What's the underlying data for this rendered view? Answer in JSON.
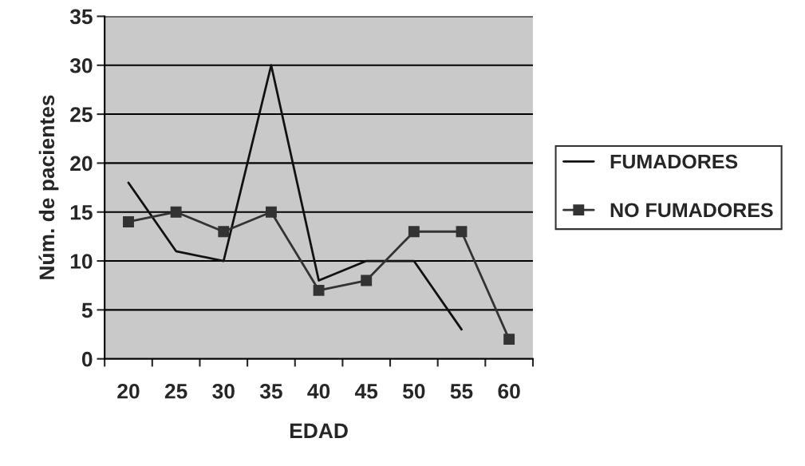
{
  "chart_data": {
    "type": "line",
    "xlabel": "EDAD",
    "ylabel": "Núm. de pacientes",
    "categories": [
      "20",
      "25",
      "30",
      "35",
      "40",
      "45",
      "50",
      "55",
      "60"
    ],
    "series": [
      {
        "name": "FUMADORES",
        "color": "#111111",
        "marker": "none",
        "values": [
          18,
          11,
          10,
          30,
          8,
          10,
          10,
          3,
          null
        ]
      },
      {
        "name": "NO FUMADORES",
        "color": "#333333",
        "marker": "square",
        "values": [
          14,
          15,
          13,
          15,
          7,
          8,
          13,
          13,
          2
        ]
      }
    ],
    "ylim": [
      0,
      35
    ],
    "yticks": [
      0,
      5,
      10,
      15,
      20,
      25,
      30,
      35
    ],
    "grid": "y",
    "legend": "right"
  }
}
